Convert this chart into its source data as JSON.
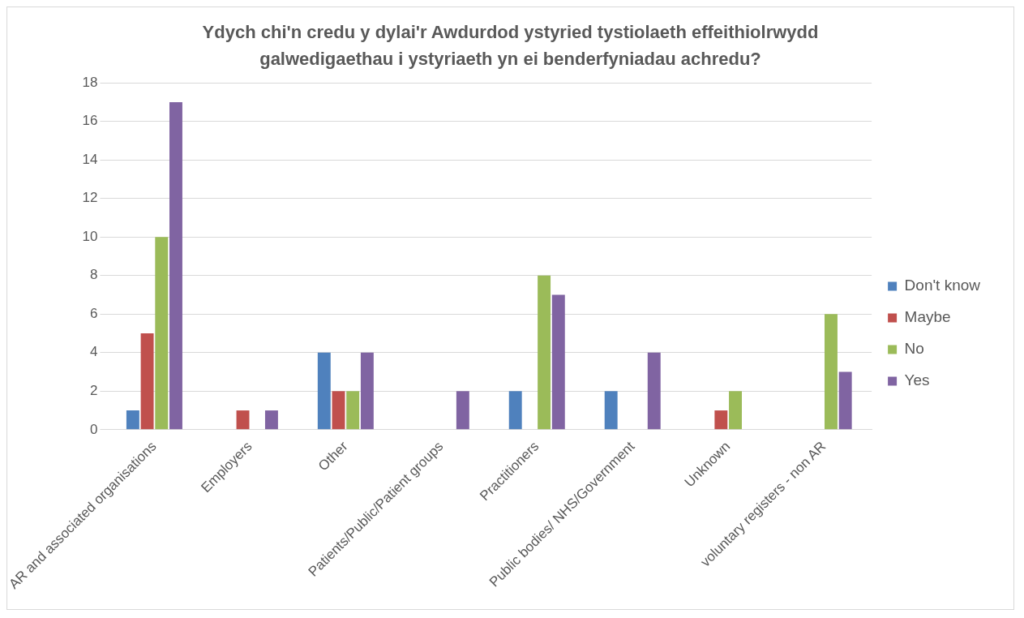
{
  "chart_data": {
    "type": "bar",
    "title": "Ydych chi'n credu y dylai'r Awdurdod ystyried tystiolaeth effeithiolrwydd galwedigaethau i ystyriaeth yn ei benderfyniadau achredu?",
    "categories": [
      "AR and associated organisations",
      "Employers",
      "Other",
      "Patients/Public/Patient groups",
      "Practitioners",
      "Public bodies/ NHS/Government",
      "Unknown",
      "voluntary registers - non AR"
    ],
    "series": [
      {
        "name": "Don't know",
        "color": "#4f81bd",
        "values": [
          1,
          0,
          4,
          0,
          2,
          2,
          0,
          0
        ]
      },
      {
        "name": "Maybe",
        "color": "#c0504d",
        "values": [
          5,
          1,
          2,
          0,
          0,
          0,
          1,
          0
        ]
      },
      {
        "name": "No",
        "color": "#9bbb59",
        "values": [
          10,
          0,
          2,
          0,
          8,
          0,
          2,
          6
        ]
      },
      {
        "name": "Yes",
        "color": "#8064a2",
        "values": [
          17,
          1,
          4,
          2,
          7,
          4,
          0,
          3
        ]
      }
    ],
    "ylim": [
      0,
      18
    ],
    "yticks": [
      0,
      2,
      4,
      6,
      8,
      10,
      12,
      14,
      16,
      18
    ],
    "grid": "y",
    "legend": "right"
  }
}
